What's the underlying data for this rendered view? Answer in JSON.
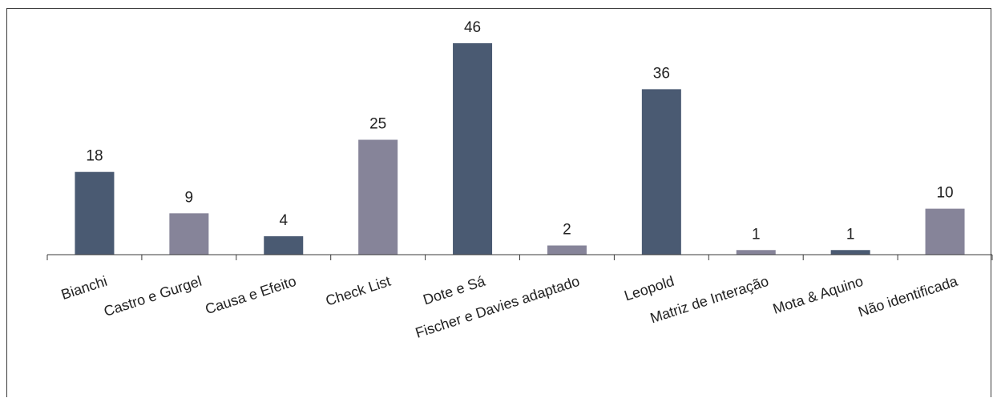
{
  "chart_data": {
    "type": "bar",
    "title": "",
    "xlabel": "",
    "ylabel": "",
    "ylim": [
      0,
      46
    ],
    "grid": false,
    "categories": [
      "Bianchi",
      "Castro e Gurgel",
      "Causa e Efeito",
      "Check List",
      "Dote e Sá",
      "Fischer e Davies adaptado",
      "Leopold",
      "Matriz de Interação",
      "Mota & Aquino",
      "Não identificada"
    ],
    "values": [
      18,
      9,
      4,
      25,
      46,
      2,
      36,
      1,
      1,
      10
    ],
    "colors": [
      "#4a5a72",
      "#868499",
      "#4a5a72",
      "#868499",
      "#4a5a72",
      "#868499",
      "#4a5a72",
      "#868499",
      "#4a5a72",
      "#868499"
    ]
  }
}
